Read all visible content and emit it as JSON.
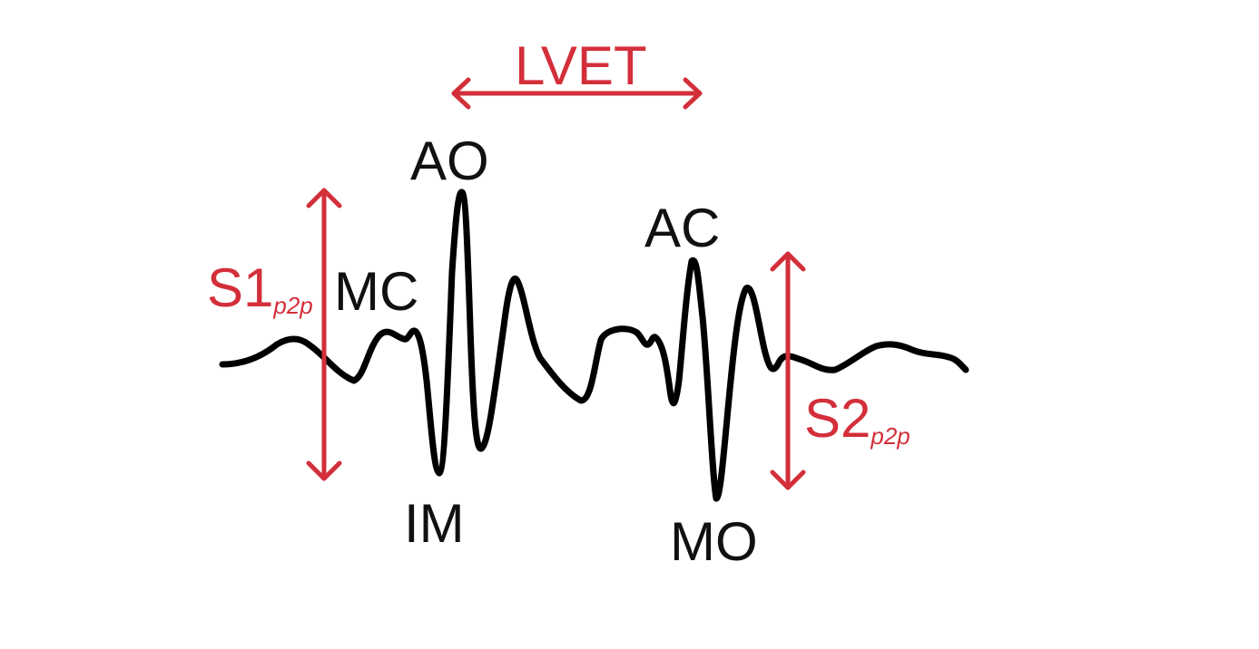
{
  "colors": {
    "background": "#ffffff",
    "waveform": "#000000",
    "annotation": "#d32f3a",
    "label": "#111111"
  },
  "labels": {
    "lvet": "LVET",
    "ao": "AO",
    "ac": "AC",
    "mc": "MC",
    "im": "IM",
    "mo": "MO",
    "s1_main": "S1",
    "s1_sub": "p2p",
    "s2_main": "S2",
    "s2_sub": "p2p"
  }
}
